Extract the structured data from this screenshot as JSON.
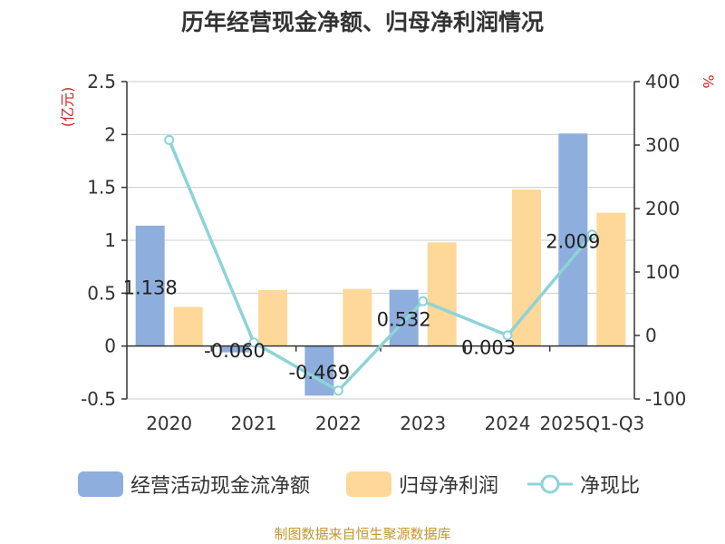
{
  "chart_data": {
    "type": "bar",
    "title": "历年经营现金净额、归母净利润情况",
    "categories": [
      "2020",
      "2021",
      "2022",
      "2023",
      "2024",
      "2025Q1-Q3"
    ],
    "left_axis": {
      "unit": "(亿元)",
      "ylim": [
        -0.5,
        2.5
      ],
      "ticks": [
        "-0.5",
        "0",
        "0.5",
        "1",
        "1.5",
        "2",
        "2.5"
      ]
    },
    "right_axis": {
      "unit": "%",
      "ylim": [
        -100,
        400
      ],
      "ticks": [
        "-100",
        "0",
        "100",
        "200",
        "300",
        "400"
      ]
    },
    "series": [
      {
        "name": "经营活动现金流净额",
        "kind": "bar",
        "axis": "left",
        "color": "#8eaedd",
        "values": [
          1.138,
          -0.06,
          -0.469,
          0.532,
          0.003,
          2.009
        ],
        "labels": [
          "1.138",
          "-0.060",
          "-0.469",
          "0.532",
          "0.003",
          "2.009"
        ]
      },
      {
        "name": "归母净利润",
        "kind": "bar",
        "axis": "left",
        "color": "#fdd898",
        "values": [
          0.37,
          0.53,
          0.54,
          0.98,
          1.48,
          1.26
        ]
      },
      {
        "name": "净现比",
        "kind": "line",
        "axis": "right",
        "color": "#8dd3d8",
        "values": [
          308,
          -11,
          -87,
          54,
          0.2,
          159
        ]
      }
    ],
    "grid": true,
    "legend": "bottom"
  },
  "source_text": "制图数据来自恒生聚源数据库"
}
